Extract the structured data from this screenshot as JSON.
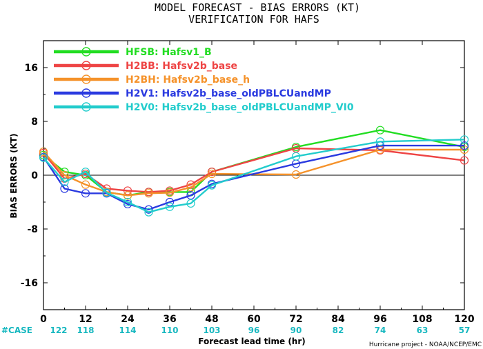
{
  "chart_data": {
    "type": "line",
    "title": "MODEL FORECAST - BIAS ERRORS (KT)",
    "subtitle": "VERIFICATION FOR HAFS",
    "xlabel": "Forecast lead time (hr)",
    "ylabel": "BIAS ERRORS (KT)",
    "credit": "Hurricane project - NOAA/NCEP/EMC",
    "xlim": [
      0,
      120
    ],
    "ylim": [
      -20,
      20
    ],
    "xticks": [
      0,
      12,
      24,
      36,
      48,
      60,
      72,
      84,
      96,
      108,
      120
    ],
    "yticks": [
      -16,
      -8,
      0,
      8,
      16
    ],
    "case_label": "#CASE",
    "case_counts": [
      122,
      118,
      114,
      110,
      103,
      96,
      90,
      82,
      74,
      63,
      57
    ],
    "colors": {
      "case": "#18b8c0"
    },
    "series": [
      {
        "name": "HFSB: Hafsv1_B",
        "color": "#22dd22",
        "x": [
          0,
          6,
          12,
          18,
          24,
          30,
          36,
          42,
          48,
          72,
          96,
          120
        ],
        "values": [
          3.0,
          0.5,
          0.0,
          -2.5,
          -3.0,
          -2.5,
          -2.5,
          -2.5,
          0.5,
          4.2,
          6.7,
          4.2
        ]
      },
      {
        "name": "H2BB: Hafsv2b_base",
        "color": "#ee4444",
        "x": [
          0,
          6,
          12,
          18,
          24,
          30,
          36,
          42,
          48,
          72,
          96,
          120
        ],
        "values": [
          3.3,
          -0.5,
          0.2,
          -2.0,
          -2.3,
          -2.5,
          -2.3,
          -1.4,
          0.5,
          4.0,
          3.7,
          2.2
        ]
      },
      {
        "name": "H2BH: Hafsv2b_base_h",
        "color": "#f5922a",
        "x": [
          0,
          6,
          12,
          18,
          24,
          30,
          36,
          42,
          48,
          72,
          96,
          120
        ],
        "values": [
          3.5,
          0.0,
          -1.4,
          -2.5,
          -3.0,
          -2.7,
          -2.6,
          -1.8,
          0.2,
          0.1,
          3.8,
          3.8
        ]
      },
      {
        "name": "H2V1: Hafsv2b_base_oldPBLCUandMP",
        "color": "#2a3ae0",
        "x": [
          0,
          6,
          12,
          18,
          24,
          30,
          36,
          42,
          48,
          72,
          96,
          120
        ],
        "values": [
          2.7,
          -2.0,
          -2.7,
          -2.7,
          -4.3,
          -5.1,
          -4.0,
          -3.0,
          -1.3,
          1.7,
          4.4,
          4.4
        ]
      },
      {
        "name": "H2V0: Hafsv2b_base_oldPBLCUandMP_VI0",
        "color": "#22cccc",
        "x": [
          0,
          6,
          12,
          18,
          24,
          30,
          36,
          42,
          48,
          72,
          96,
          120
        ],
        "values": [
          2.6,
          -1.0,
          0.5,
          -2.6,
          -4.0,
          -5.5,
          -4.7,
          -4.2,
          -1.5,
          2.8,
          5.0,
          5.3
        ]
      }
    ]
  }
}
